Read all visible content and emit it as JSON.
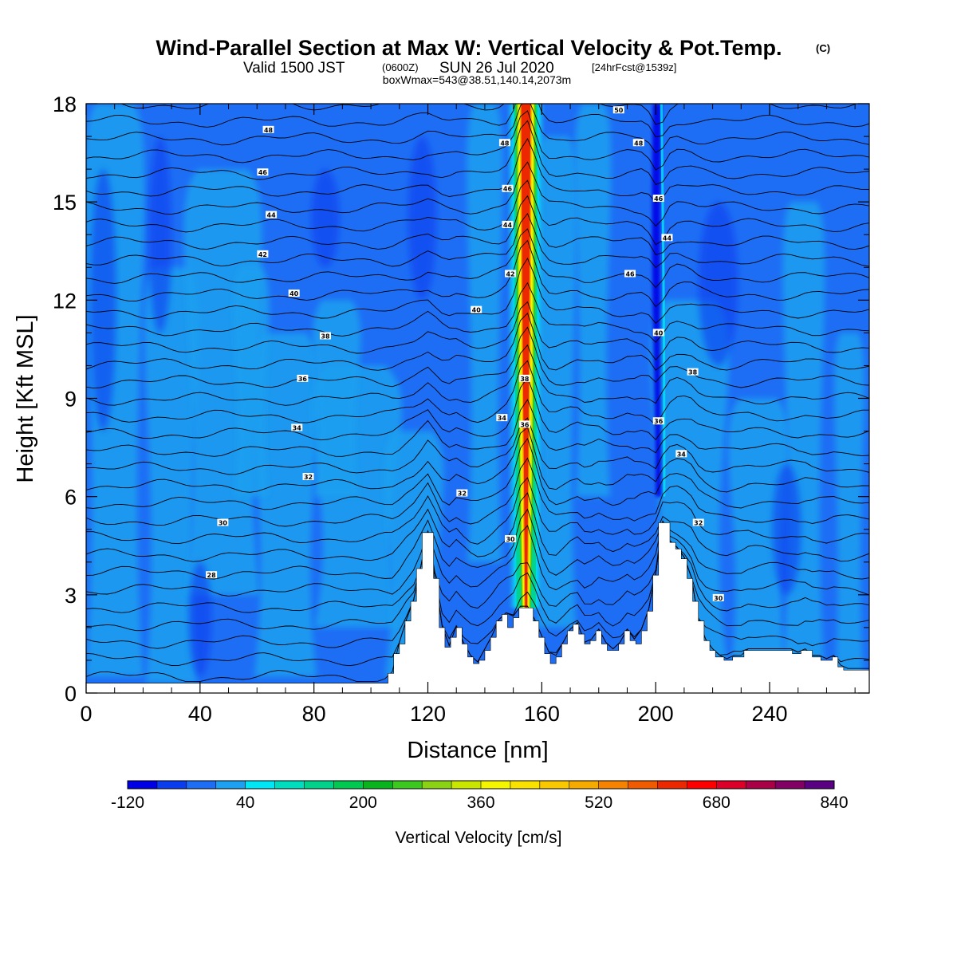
{
  "title": {
    "main": "Wind-Parallel Section at Max W: Vertical Velocity & Pot.Temp.",
    "main_suffix": "(C)",
    "line2_a": "Valid 1500 JST",
    "line2_b": "(0600Z)",
    "line2_c": "SUN 26 Jul 2020",
    "line2_d": "[24hrFcst@1539z]",
    "line3": "boxWmax=543@38.51,140.14,2073m"
  },
  "chart_data": {
    "type": "heatmap",
    "xlabel": "Distance [nm]",
    "ylabel": "Height [Kft MSL]",
    "xlim": [
      0,
      275
    ],
    "ylim": [
      0,
      18
    ],
    "x_ticks": [
      "0",
      "40",
      "80",
      "120",
      "160",
      "200",
      "240"
    ],
    "y_ticks": [
      "0",
      "3",
      "6",
      "9",
      "12",
      "15",
      "18"
    ],
    "grid": false,
    "colorbar": {
      "title": "Vertical Velocity [cm/s]",
      "placement": "bottom",
      "levels_start": -120,
      "level_step": 40,
      "labels": [
        "-120",
        "40",
        "200",
        "360",
        "520",
        "680",
        "840"
      ],
      "colors": [
        "#0000e6",
        "#0a3cf0",
        "#1e6ef5",
        "#1ea0f0",
        "#00e6f5",
        "#00dcbe",
        "#00d28c",
        "#00c850",
        "#0ab41e",
        "#3cc81e",
        "#8cd214",
        "#c8e600",
        "#f5f500",
        "#fae100",
        "#fac800",
        "#f5aa00",
        "#f58200",
        "#f05a00",
        "#eb2800",
        "#ff0000",
        "#dc0028",
        "#aa0046",
        "#820064",
        "#5a0082"
      ]
    },
    "terrain": [
      [
        0,
        0.3
      ],
      [
        105,
        0.3
      ],
      [
        106,
        0.6
      ],
      [
        108,
        1.2
      ],
      [
        110,
        1.5
      ],
      [
        112,
        2.2
      ],
      [
        114,
        2.8
      ],
      [
        116,
        3.8
      ],
      [
        118,
        4.9
      ],
      [
        120,
        4.9
      ],
      [
        122,
        3.5
      ],
      [
        124,
        2.0
      ],
      [
        126,
        1.4
      ],
      [
        128,
        1.7
      ],
      [
        130,
        2.0
      ],
      [
        132,
        1.5
      ],
      [
        134,
        1.1
      ],
      [
        136,
        0.9
      ],
      [
        138,
        1.0
      ],
      [
        140,
        1.3
      ],
      [
        142,
        1.7
      ],
      [
        144,
        2.2
      ],
      [
        146,
        2.4
      ],
      [
        148,
        2.0
      ],
      [
        150,
        2.3
      ],
      [
        152,
        2.6
      ],
      [
        155,
        2.6
      ],
      [
        157,
        2.2
      ],
      [
        159,
        1.7
      ],
      [
        161,
        1.2
      ],
      [
        163,
        0.9
      ],
      [
        165,
        1.1
      ],
      [
        167,
        1.5
      ],
      [
        169,
        1.9
      ],
      [
        171,
        2.1
      ],
      [
        173,
        1.8
      ],
      [
        175,
        1.5
      ],
      [
        177,
        1.6
      ],
      [
        179,
        1.9
      ],
      [
        181,
        1.5
      ],
      [
        183,
        1.3
      ],
      [
        185,
        1.3
      ],
      [
        187,
        1.5
      ],
      [
        189,
        1.9
      ],
      [
        191,
        1.6
      ],
      [
        193,
        1.5
      ],
      [
        195,
        1.9
      ],
      [
        197,
        2.5
      ],
      [
        199,
        3.6
      ],
      [
        201,
        5.2
      ],
      [
        203,
        5.2
      ],
      [
        205,
        4.6
      ],
      [
        207,
        4.4
      ],
      [
        209,
        4.1
      ],
      [
        211,
        3.5
      ],
      [
        213,
        2.8
      ],
      [
        215,
        2.2
      ],
      [
        217,
        1.6
      ],
      [
        219,
        1.3
      ],
      [
        221,
        1.1
      ],
      [
        224,
        1.0
      ],
      [
        227,
        1.1
      ],
      [
        231,
        1.3
      ],
      [
        235,
        1.3
      ],
      [
        240,
        1.3
      ],
      [
        246,
        1.3
      ],
      [
        248,
        1.2
      ],
      [
        251,
        1.3
      ],
      [
        255,
        1.1
      ],
      [
        258,
        1.0
      ],
      [
        262,
        1.1
      ],
      [
        264,
        0.8
      ],
      [
        266,
        0.7
      ],
      [
        275,
        0.7
      ]
    ],
    "updraft_core_x": 154.5,
    "updraft_peak_cms": 543,
    "downdraft_band_x": 201,
    "theta_contours_c": [
      24,
      26,
      28,
      30,
      32,
      34,
      36,
      38,
      40,
      42,
      44,
      46,
      48,
      50
    ]
  },
  "contour_labels": [
    {
      "x": 64,
      "y": 17.2,
      "text": "48"
    },
    {
      "x": 62,
      "y": 15.9,
      "text": "46"
    },
    {
      "x": 65,
      "y": 14.6,
      "text": "44"
    },
    {
      "x": 62,
      "y": 13.4,
      "text": "42"
    },
    {
      "x": 73,
      "y": 12.2,
      "text": "40"
    },
    {
      "x": 84,
      "y": 10.9,
      "text": "38"
    },
    {
      "x": 76,
      "y": 9.6,
      "text": "36"
    },
    {
      "x": 74,
      "y": 8.1,
      "text": "34"
    },
    {
      "x": 78,
      "y": 6.6,
      "text": "32"
    },
    {
      "x": 48,
      "y": 5.2,
      "text": "30"
    },
    {
      "x": 44,
      "y": 3.6,
      "text": "28"
    },
    {
      "x": 137,
      "y": 11.7,
      "text": "40"
    },
    {
      "x": 132,
      "y": 6.1,
      "text": "32"
    },
    {
      "x": 146,
      "y": 8.4,
      "text": "34"
    },
    {
      "x": 149,
      "y": 4.7,
      "text": "30"
    },
    {
      "x": 147,
      "y": 16.8,
      "text": "48"
    },
    {
      "x": 148,
      "y": 15.4,
      "text": "46"
    },
    {
      "x": 148,
      "y": 14.3,
      "text": "44"
    },
    {
      "x": 149,
      "y": 12.8,
      "text": "42"
    },
    {
      "x": 154,
      "y": 9.6,
      "text": "38"
    },
    {
      "x": 154,
      "y": 8.2,
      "text": "36"
    },
    {
      "x": 187,
      "y": 17.8,
      "text": "50"
    },
    {
      "x": 194,
      "y": 16.8,
      "text": "48"
    },
    {
      "x": 191,
      "y": 12.8,
      "text": "46"
    },
    {
      "x": 201,
      "y": 15.1,
      "text": "46"
    },
    {
      "x": 204,
      "y": 13.9,
      "text": "44"
    },
    {
      "x": 201,
      "y": 11.0,
      "text": "40"
    },
    {
      "x": 213,
      "y": 9.8,
      "text": "38"
    },
    {
      "x": 201,
      "y": 8.3,
      "text": "36"
    },
    {
      "x": 209,
      "y": 7.3,
      "text": "34"
    },
    {
      "x": 215,
      "y": 5.2,
      "text": "32"
    },
    {
      "x": 222,
      "y": 2.9,
      "text": "30"
    }
  ]
}
